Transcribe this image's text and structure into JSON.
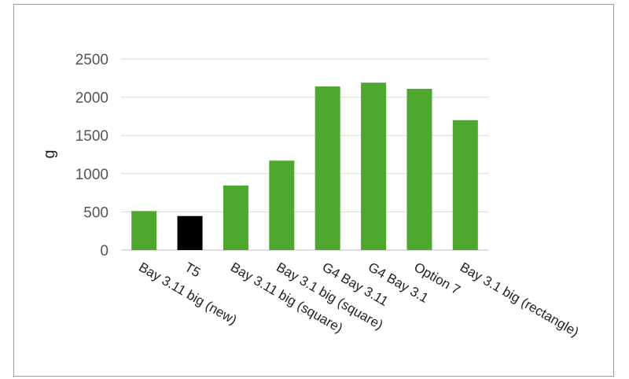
{
  "chart_data": {
    "type": "bar",
    "title": "",
    "xlabel": "",
    "ylabel": "g",
    "ylim": [
      0,
      2500
    ],
    "yticks": [
      0,
      500,
      1000,
      1500,
      2000,
      2500
    ],
    "grid": true,
    "legend": "none",
    "categories": [
      "Bay 3.11 big (new)",
      "T5",
      "Bay 3.11 big (square)",
      "Bay 3.1 big (square)",
      "G4 Bay 3.11",
      "G4 Bay 3.1",
      "Option 7",
      "Bay 3.1 big (rectangle)"
    ],
    "values": [
      510,
      445,
      845,
      1170,
      2140,
      2190,
      2110,
      1700
    ],
    "colors": [
      "#4ea72e",
      "#000000",
      "#4ea72e",
      "#4ea72e",
      "#4ea72e",
      "#4ea72e",
      "#4ea72e",
      "#4ea72e"
    ]
  }
}
